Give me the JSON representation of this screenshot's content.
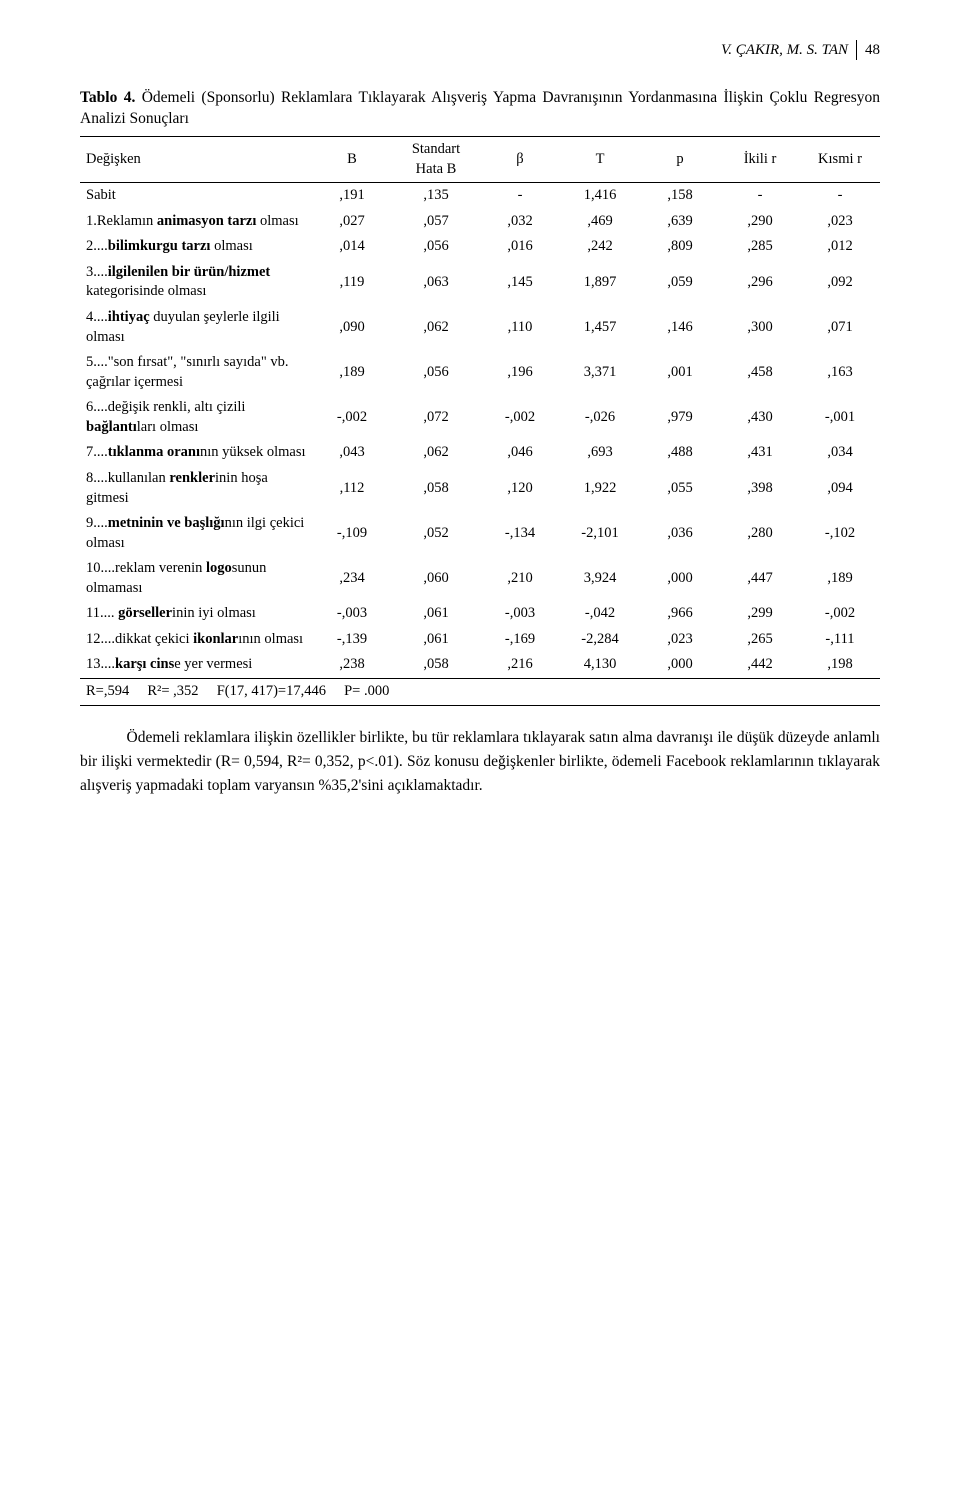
{
  "header": {
    "author": "V. ÇAKIR, M. S. TAN",
    "page": "48"
  },
  "table_caption_prefix": "Tablo 4.",
  "table_caption": "Ödemeli (Sponsorlu) Reklamlara Tıklayarak Alışveriş Yapma Davranışının Yordanmasına İlişkin Çoklu Regresyon Analizi Sonuçları",
  "columns": [
    "Değişken",
    "B",
    "Standart Hata B",
    "β",
    "T",
    "p",
    "İkili r",
    "Kısmi r"
  ],
  "rows": [
    {
      "label": "Sabit",
      "B": ",191",
      "SH": ",135",
      "beta": "-",
      "T": "1,416",
      "p": ",158",
      "ikili": "-",
      "kismi": "-",
      "bolds": []
    },
    {
      "label": "1.Reklamın <b>animasyon tarzı</b> olması",
      "B": ",027",
      "SH": ",057",
      "beta": ",032",
      "T": ",469",
      "p": ",639",
      "ikili": ",290",
      "kismi": ",023"
    },
    {
      "label": "2....<b>bilimkurgu tarzı</b> olması",
      "B": ",014",
      "SH": ",056",
      "beta": ",016",
      "T": ",242",
      "p": ",809",
      "ikili": ",285",
      "kismi": ",012"
    },
    {
      "label": "3....<b>ilgilenilen bir ürün/hizmet</b> kategorisinde olması",
      "B": ",119",
      "SH": ",063",
      "beta": ",145",
      "T": "1,897",
      "p": ",059",
      "ikili": ",296",
      "kismi": ",092"
    },
    {
      "label": "4....<b>ihtiyaç</b> duyulan şeylerle ilgili olması",
      "B": ",090",
      "SH": ",062",
      "beta": ",110",
      "T": "1,457",
      "p": ",146",
      "ikili": ",300",
      "kismi": ",071"
    },
    {
      "label": "5....\"son fırsat\", \"sınırlı sayıda\" vb. çağrılar içermesi",
      "B": ",189",
      "SH": ",056",
      "beta": ",196",
      "T": "3,371",
      "p": ",001",
      "ikili": ",458",
      "kismi": ",163"
    },
    {
      "label": "6....değişik renkli, altı çizili <b>bağlantı</b>ları olması",
      "B": "-,002",
      "SH": ",072",
      "beta": "-,002",
      "T": "-,026",
      "p": ",979",
      "ikili": ",430",
      "kismi": "-,001"
    },
    {
      "label": "7....<b>tıklanma oranı</b>nın yüksek olması",
      "B": ",043",
      "SH": ",062",
      "beta": ",046",
      "T": ",693",
      "p": ",488",
      "ikili": ",431",
      "kismi": ",034"
    },
    {
      "label": "8....kullanılan <b>renkler</b>inin hoşa gitmesi",
      "B": ",112",
      "SH": ",058",
      "beta": ",120",
      "T": "1,922",
      "p": ",055",
      "ikili": ",398",
      "kismi": ",094"
    },
    {
      "label": "9....<b>metninin ve başlığı</b>nın ilgi çekici olması",
      "B": "-,109",
      "SH": ",052",
      "beta": "-,134",
      "T": "-2,101",
      "p": ",036",
      "ikili": ",280",
      "kismi": "-,102"
    },
    {
      "label": "10....reklam verenin <b>logo</b>sunun olmaması",
      "B": ",234",
      "SH": ",060",
      "beta": ",210",
      "T": "3,924",
      "p": ",000",
      "ikili": ",447",
      "kismi": ",189"
    },
    {
      "label": "11.... <b>görseller</b>inin iyi olması",
      "B": "-,003",
      "SH": ",061",
      "beta": "-,003",
      "T": "-,042",
      "p": ",966",
      "ikili": ",299",
      "kismi": "-,002"
    },
    {
      "label": "12....dikkat çekici <b>ikonlar</b>ının olması",
      "B": "-,139",
      "SH": ",061",
      "beta": "-,169",
      "T": "-2,284",
      "p": ",023",
      "ikili": ",265",
      "kismi": "-,111"
    },
    {
      "label": "13....<b>karşı cins</b>e yer vermesi",
      "B": ",238",
      "SH": ",058",
      "beta": ",216",
      "T": "4,130",
      "p": ",000",
      "ikili": ",442",
      "kismi": ",198"
    }
  ],
  "footer_stats": {
    "R": "R=,594",
    "R2": "R²= ,352",
    "F": "F(17, 417)=17,446",
    "P": "P= .000"
  },
  "paragraph": "Ödemeli reklamlara ilişkin özellikler birlikte, bu tür reklamlara tıklayarak satın alma davranışı ile düşük düzeyde anlamlı bir ilişki vermektedir (R= 0,594, R²= 0,352, p<.01). Söz konusu değişkenler birlikte, ödemeli Facebook reklamlarının tıklayarak alışveriş yapmadaki toplam varyansın %35,2'sini açıklamaktadır.",
  "style": {
    "background_color": "#ffffff",
    "text_color": "#000000",
    "font_family": "Palatino",
    "body_fontsize_pt": 12,
    "table_fontsize_pt": 11,
    "column_widths": [
      "29%",
      "10%",
      "11%",
      "10%",
      "10%",
      "10%",
      "10%",
      "10%"
    ],
    "border_color": "#000000"
  }
}
